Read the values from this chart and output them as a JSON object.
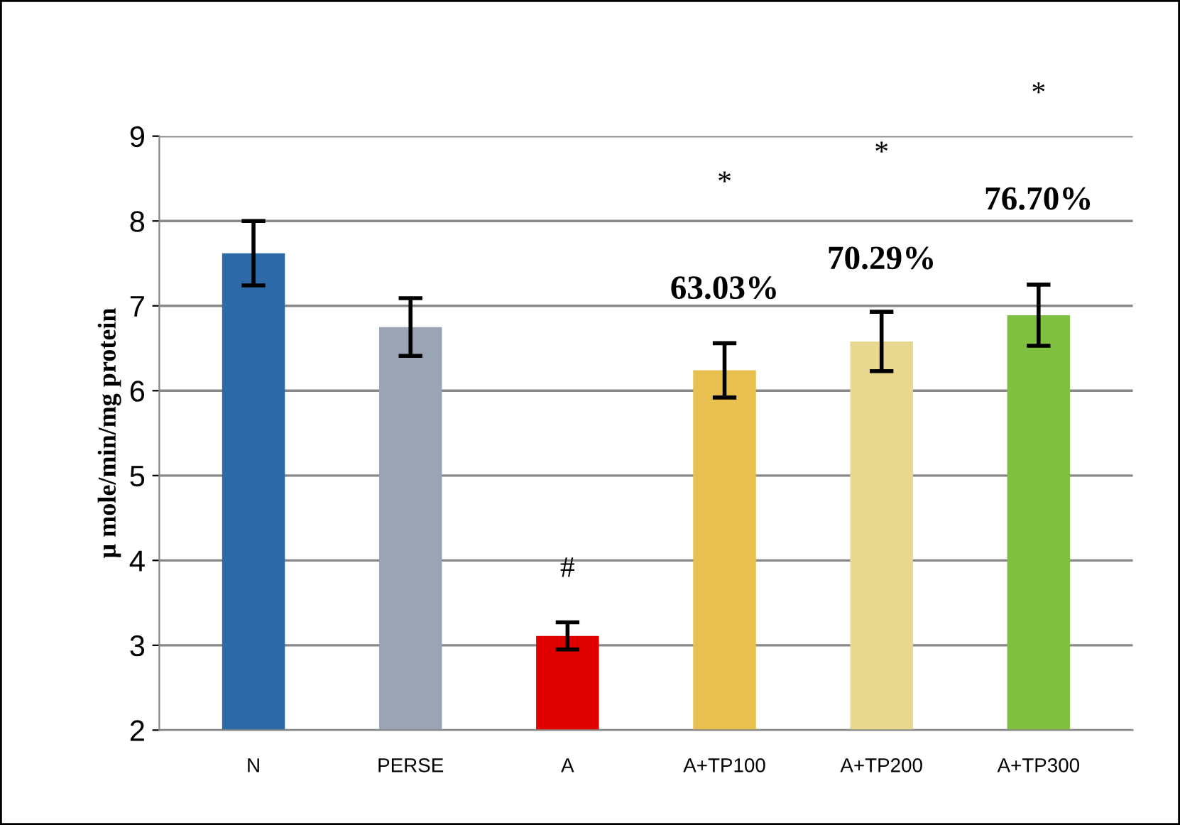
{
  "chart_data": {
    "type": "bar",
    "ylabel": "µ mole/min/mg protein",
    "categories": [
      "N",
      "PERSE",
      "A",
      "A+TP100",
      "A+TP200",
      "A+TP300"
    ],
    "values": [
      7.62,
      6.75,
      3.11,
      6.24,
      6.58,
      6.89
    ],
    "errors": [
      0.38,
      0.34,
      0.16,
      0.32,
      0.35,
      0.36
    ],
    "colors": [
      "#2e6aa8",
      "#9aa4b4",
      "#e00000",
      "#e8c050",
      "#e8d890",
      "#80c040"
    ],
    "ylim": [
      2,
      9
    ],
    "yticks": [
      2,
      3,
      4,
      5,
      6,
      7,
      8,
      9
    ],
    "grid": "y",
    "annotations": [
      "#",
      "*",
      "63.03%",
      "*",
      "70.29%",
      "*",
      "76.70%"
    ]
  }
}
